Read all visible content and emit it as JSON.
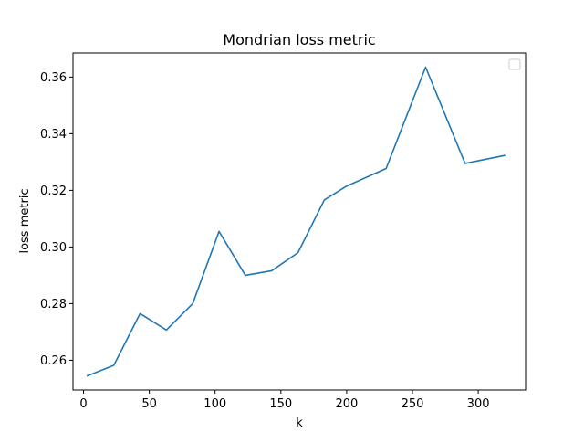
{
  "chart_data": {
    "type": "line",
    "title": "Mondrian loss metric",
    "xlabel": "k",
    "ylabel": "loss metric",
    "xlim": [
      -8,
      336
    ],
    "ylim": [
      0.2495,
      0.3685
    ],
    "x_ticks": [
      0,
      50,
      100,
      150,
      200,
      250,
      300
    ],
    "y_ticks": [
      0.26,
      0.28,
      0.3,
      0.32,
      0.34,
      0.36
    ],
    "y_tick_labels": [
      "0.26",
      "0.28",
      "0.30",
      "0.32",
      "0.34",
      "0.36"
    ],
    "grid": false,
    "legend": {
      "placement": "upper right",
      "entries": []
    },
    "series": [
      {
        "color": "#1f77b4",
        "x": [
          3,
          23,
          43,
          63,
          83,
          103,
          123,
          143,
          163,
          183,
          200,
          230,
          260,
          290,
          320
        ],
        "y": [
          0.2545,
          0.2582,
          0.2765,
          0.2707,
          0.28,
          0.3055,
          0.29,
          0.2916,
          0.298,
          0.3166,
          0.3215,
          0.3277,
          0.3635,
          0.3295,
          0.3323
        ]
      }
    ]
  }
}
